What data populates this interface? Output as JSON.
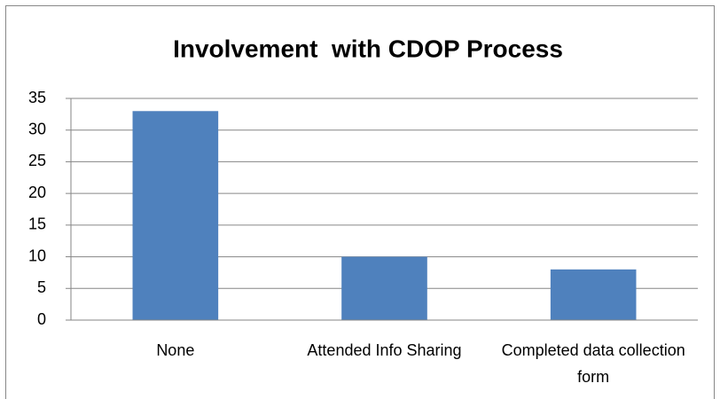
{
  "chart_data": {
    "type": "bar",
    "title": "Involvement  with CDOP Process",
    "categories": [
      "None",
      "Attended Info Sharing",
      "Completed data collection form"
    ],
    "values": [
      33,
      10,
      8
    ],
    "color": "#4f81bd",
    "ylim": [
      0,
      35
    ],
    "yticks": [
      0,
      5,
      10,
      15,
      20,
      25,
      30,
      35
    ],
    "grid": true
  }
}
